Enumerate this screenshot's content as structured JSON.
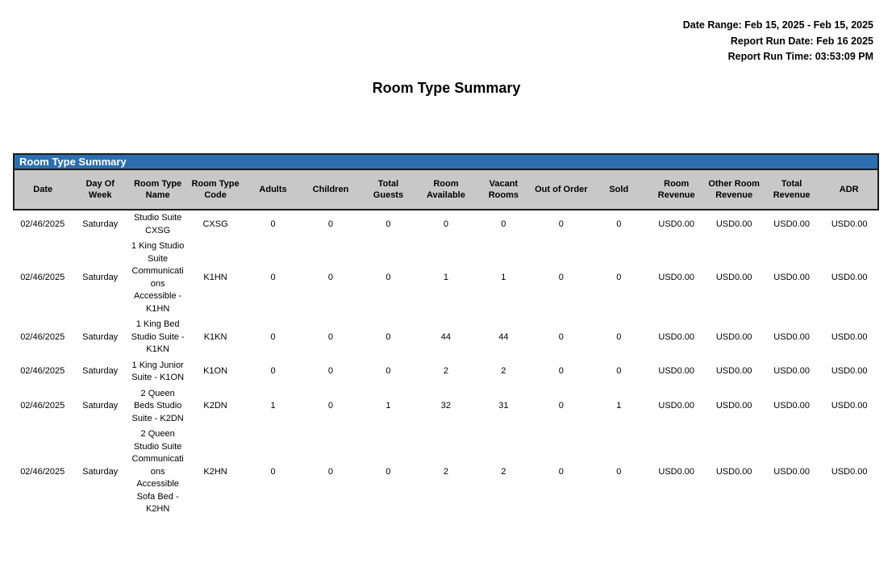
{
  "meta": {
    "date_range": "Date Range: Feb 15, 2025 - Feb 15, 2025",
    "run_date": "Report Run Date: Feb 16 2025",
    "run_time": "Report Run Time: 03:53:09 PM"
  },
  "page_title": "Room Type Summary",
  "table": {
    "title": "Room Type Summary",
    "columns": [
      "Date",
      "Day Of Week",
      "Room Type Name",
      "Room Type Code",
      "Adults",
      "Children",
      "Total Guests",
      "Room Available",
      "Vacant Rooms",
      "Out of Order",
      "Sold",
      "Room Revenue",
      "Other Room Revenue",
      "Total Revenue",
      "ADR"
    ],
    "rows": [
      [
        "02/46/2025",
        "Saturday",
        "Studio Suite CXSG",
        "CXSG",
        "0",
        "0",
        "0",
        "0",
        "0",
        "0",
        "0",
        "USD0.00",
        "USD0.00",
        "USD0.00",
        "USD0.00"
      ],
      [
        "02/46/2025",
        "Saturday",
        "1 King Studio Suite Communications Accessible - K1HN",
        "K1HN",
        "0",
        "0",
        "0",
        "1",
        "1",
        "0",
        "0",
        "USD0.00",
        "USD0.00",
        "USD0.00",
        "USD0.00"
      ],
      [
        "02/46/2025",
        "Saturday",
        "1 King Bed Studio Suite - K1KN",
        "K1KN",
        "0",
        "0",
        "0",
        "44",
        "44",
        "0",
        "0",
        "USD0.00",
        "USD0.00",
        "USD0.00",
        "USD0.00"
      ],
      [
        "02/46/2025",
        "Saturday",
        "1 King Junior Suite - K1ON",
        "K1ON",
        "0",
        "0",
        "0",
        "2",
        "2",
        "0",
        "0",
        "USD0.00",
        "USD0.00",
        "USD0.00",
        "USD0.00"
      ],
      [
        "02/46/2025",
        "Saturday",
        "2 Queen Beds Studio Suite - K2DN",
        "K2DN",
        "1",
        "0",
        "1",
        "32",
        "31",
        "0",
        "1",
        "USD0.00",
        "USD0.00",
        "USD0.00",
        "USD0.00"
      ],
      [
        "02/46/2025",
        "Saturday",
        "2 Queen Studio Suite Communications Accessible Sofa Bed - K2HN",
        "K2HN",
        "0",
        "0",
        "0",
        "2",
        "2",
        "0",
        "0",
        "USD0.00",
        "USD0.00",
        "USD0.00",
        "USD0.00"
      ]
    ]
  },
  "colors": {
    "title_bar_blue": "#2d6fae",
    "header_row_gray": "#c8c8c8",
    "border_dark": "#1c1c1c"
  }
}
